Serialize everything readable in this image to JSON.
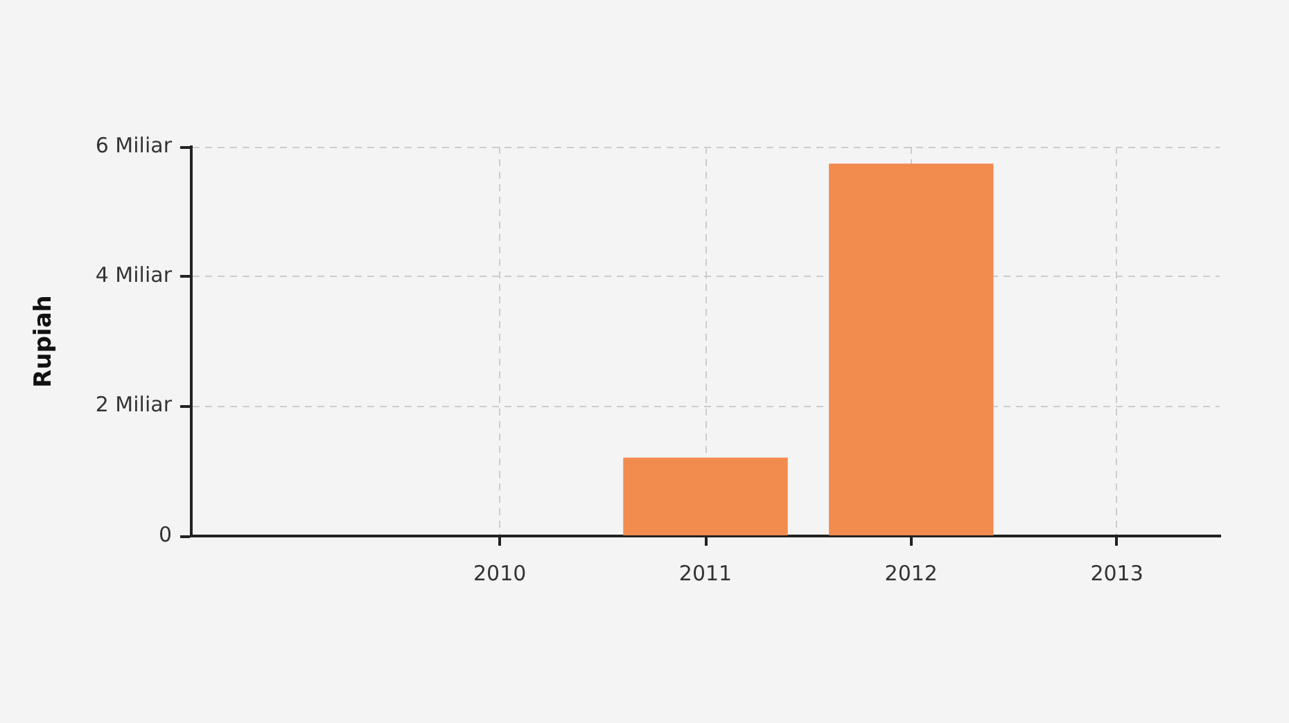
{
  "chart_data": {
    "type": "bar",
    "ylabel": "Rupiah",
    "x": [
      2011,
      2012
    ],
    "values": [
      1.21,
      5.74
    ],
    "color": "#f28b4e",
    "xlim": [
      2008.5,
      2013.5
    ],
    "xticks": [
      2010,
      2011,
      2012,
      2013
    ],
    "ylim": [
      0,
      6
    ],
    "yticks": [
      0,
      {
        "value": 2,
        "label": "2 Miliar"
      },
      {
        "value": 4,
        "label": "4 Miliar"
      },
      {
        "value": 6,
        "label": "6 Miliar"
      }
    ],
    "grid": true
  }
}
